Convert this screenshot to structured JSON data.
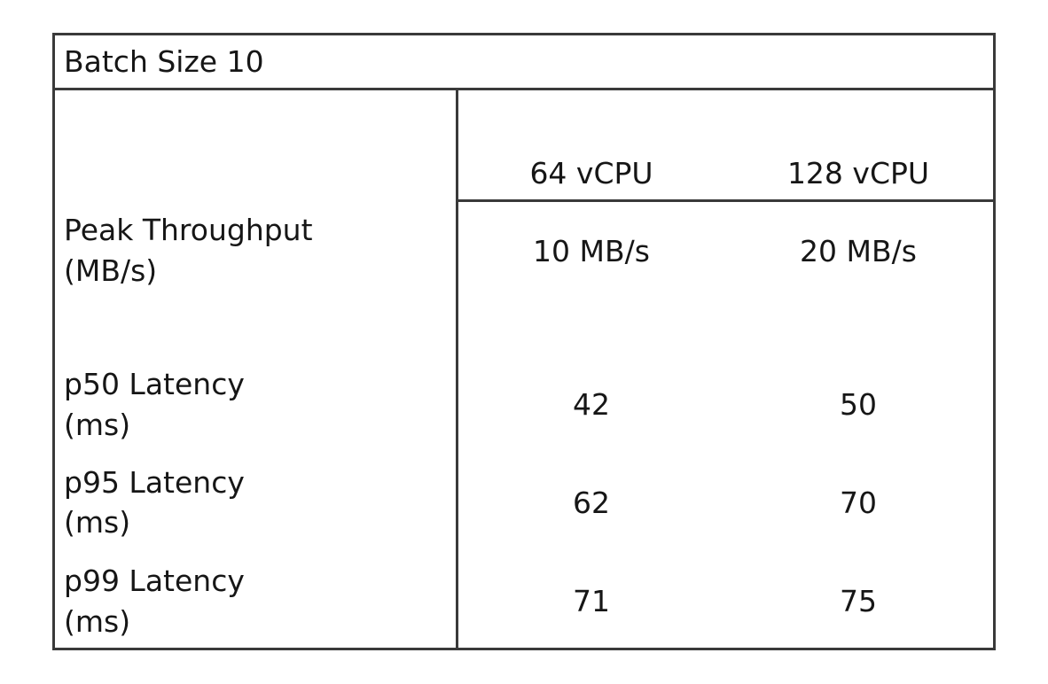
{
  "header": {
    "title": "Batch Size 10"
  },
  "table": {
    "columns": [
      "64 vCPU",
      "128 vCPU"
    ],
    "rows": [
      {
        "label": [
          "Peak Throughput",
          "(MB/s)"
        ],
        "values": [
          "10 MB/s",
          "20 MB/s"
        ]
      },
      {
        "label": [
          "p50 Latency",
          "(ms)"
        ],
        "values": [
          42,
          50
        ]
      },
      {
        "label": [
          "p95 Latency",
          "(ms)"
        ],
        "values": [
          62,
          70
        ]
      },
      {
        "label": [
          "p99 Latency",
          "(ms)"
        ],
        "values": [
          71,
          75
        ]
      }
    ]
  }
}
